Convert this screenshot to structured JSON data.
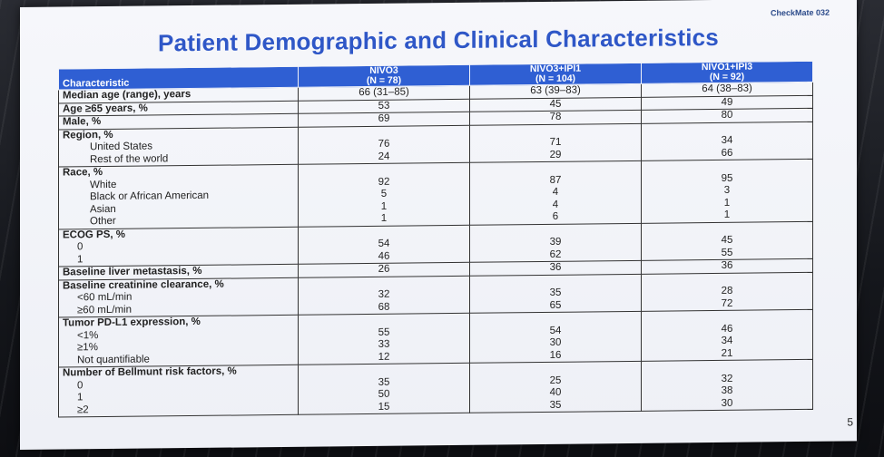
{
  "brand": "CheckMate 032",
  "title": "Patient Demographic and Clinical Characteristics",
  "page_number": "5",
  "table": {
    "header": {
      "characteristic": "Characteristic",
      "arms": [
        {
          "name": "NIVO3",
          "n": "(N = 78)"
        },
        {
          "name": "NIVO3+IPI1",
          "n": "(N = 104)"
        },
        {
          "name": "NIVO1+IPI3",
          "n": "(N = 92)"
        }
      ]
    },
    "rows": [
      {
        "label": "Median age (range), years",
        "subs": [],
        "values": [
          [
            "66 (31–85)"
          ],
          [
            "63 (39–83)"
          ],
          [
            "64 (38–83)"
          ]
        ]
      },
      {
        "label": "Age ≥65 years, %",
        "subs": [],
        "values": [
          [
            "53"
          ],
          [
            "45"
          ],
          [
            "49"
          ]
        ]
      },
      {
        "label": "Male, %",
        "subs": [],
        "values": [
          [
            "69"
          ],
          [
            "78"
          ],
          [
            "80"
          ]
        ]
      },
      {
        "label": "Region, %",
        "subs": [
          "United States",
          "Rest of the world"
        ],
        "values": [
          [
            "76",
            "24"
          ],
          [
            "71",
            "29"
          ],
          [
            "34",
            "66"
          ]
        ]
      },
      {
        "label": "Race, %",
        "subs": [
          "White",
          "Black or African American",
          "Asian",
          "Other"
        ],
        "values": [
          [
            "92",
            "5",
            "1",
            "1"
          ],
          [
            "87",
            "4",
            "4",
            "6"
          ],
          [
            "95",
            "3",
            "1",
            "1"
          ]
        ]
      },
      {
        "label": "ECOG PS, %",
        "subs": [
          "0",
          "1"
        ],
        "values": [
          [
            "54",
            "46"
          ],
          [
            "39",
            "62"
          ],
          [
            "45",
            "55"
          ]
        ]
      },
      {
        "label": "Baseline liver metastasis, %",
        "subs": [],
        "values": [
          [
            "26"
          ],
          [
            "36"
          ],
          [
            "36"
          ]
        ]
      },
      {
        "label": "Baseline creatinine clearance, %",
        "subs": [
          "<60 mL/min",
          "≥60 mL/min"
        ],
        "values": [
          [
            "32",
            "68"
          ],
          [
            "35",
            "65"
          ],
          [
            "28",
            "72"
          ]
        ]
      },
      {
        "label": "Tumor PD-L1 expression, %",
        "subs": [
          "<1%",
          "≥1%",
          "Not quantifiable"
        ],
        "values": [
          [
            "55",
            "33",
            "12"
          ],
          [
            "54",
            "30",
            "16"
          ],
          [
            "46",
            "34",
            "21"
          ]
        ]
      },
      {
        "label": "Number of Bellmunt risk factors, %",
        "subs": [
          "0",
          "1",
          "≥2"
        ],
        "values": [
          [
            "35",
            "50",
            "15"
          ],
          [
            "25",
            "40",
            "35"
          ],
          [
            "32",
            "38",
            "30"
          ]
        ]
      }
    ]
  }
}
